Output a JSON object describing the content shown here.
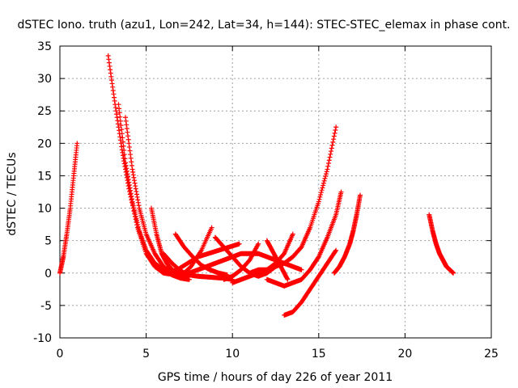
{
  "chart_data": {
    "type": "scatter",
    "title": "dSTEC Iono. truth (azu1, Lon=242, Lat=34, h=144): STEC-STEC_elemax in phase cont.",
    "xlabel": "GPS time / hours of day 226 of year 2011",
    "ylabel": "dSTEC  / TECUs",
    "xlim": [
      0,
      25
    ],
    "ylim": [
      -10,
      35
    ],
    "xticks": [
      0,
      5,
      10,
      15,
      20,
      25
    ],
    "yticks": [
      -10,
      -5,
      0,
      5,
      10,
      15,
      20,
      25,
      30,
      35
    ],
    "grid": true,
    "marker": "plus",
    "color": "#ff0000",
    "series": [
      {
        "x": [
          0.0,
          0.2,
          0.4,
          0.6,
          0.8,
          1.0
        ],
        "y": [
          0.0,
          2.5,
          6.0,
          10.0,
          15.0,
          20.0
        ]
      },
      {
        "x": [
          2.8,
          3.2,
          3.6,
          4.0,
          4.5,
          5.0,
          5.5,
          6.0,
          6.5
        ],
        "y": [
          33.5,
          26.0,
          19.0,
          13.0,
          7.0,
          3.0,
          1.0,
          0.0,
          -0.2
        ]
      },
      {
        "x": [
          3.4,
          3.8,
          4.2,
          4.6,
          5.0,
          5.5,
          6.0,
          6.5,
          7.0,
          7.5
        ],
        "y": [
          26.0,
          17.0,
          11.0,
          6.5,
          3.5,
          1.5,
          0.5,
          -0.3,
          -0.8,
          -1.0
        ]
      },
      {
        "x": [
          3.8,
          4.2,
          4.6,
          5.0,
          5.5,
          6.0,
          6.5,
          7.0
        ],
        "y": [
          24.0,
          16.0,
          10.0,
          6.0,
          3.0,
          1.0,
          0.0,
          -0.5
        ]
      },
      {
        "x": [
          5.3,
          5.6,
          5.9,
          6.2,
          6.5,
          7.0,
          7.5
        ],
        "y": [
          10.0,
          6.0,
          3.0,
          1.5,
          0.5,
          -0.3,
          -0.5
        ]
      },
      {
        "x": [
          6.0,
          6.5,
          7.0,
          7.5,
          8.0,
          8.5,
          9.0,
          9.5,
          10.0
        ],
        "y": [
          3.0,
          1.5,
          0.3,
          -0.3,
          -0.5,
          -0.6,
          -0.7,
          -0.8,
          -1.0
        ]
      },
      {
        "x": [
          6.7,
          7.2,
          7.7,
          8.2,
          8.7,
          9.2,
          9.7
        ],
        "y": [
          6.0,
          4.0,
          2.5,
          1.2,
          0.5,
          0.0,
          -0.3
        ]
      },
      {
        "x": [
          6.2,
          6.8,
          7.4,
          8.0,
          8.6,
          9.2,
          9.8,
          10.4
        ],
        "y": [
          0.0,
          0.5,
          1.5,
          2.5,
          3.0,
          3.5,
          4.0,
          4.5
        ]
      },
      {
        "x": [
          7.0,
          7.6,
          8.2,
          8.8
        ],
        "y": [
          -0.5,
          1.0,
          3.5,
          7.0
        ]
      },
      {
        "x": [
          7.0,
          7.5,
          8.0,
          8.5,
          9.0,
          9.5,
          10.0,
          10.5,
          11.0,
          11.5,
          12.0,
          12.5,
          13.0,
          13.5,
          14.0
        ],
        "y": [
          0.0,
          0.0,
          0.5,
          1.0,
          1.5,
          2.0,
          2.5,
          3.0,
          3.0,
          3.0,
          2.5,
          2.0,
          1.5,
          1.0,
          0.5
        ]
      },
      {
        "x": [
          9.0,
          9.5,
          10.0,
          10.5,
          11.0,
          11.5,
          12.0,
          12.5
        ],
        "y": [
          5.5,
          4.0,
          2.5,
          1.0,
          0.0,
          -0.5,
          0.0,
          1.0
        ]
      },
      {
        "x": [
          9.5,
          10.0,
          10.5,
          11.0,
          11.5
        ],
        "y": [
          -1.0,
          -0.5,
          0.5,
          2.0,
          4.5
        ]
      },
      {
        "x": [
          10.0,
          10.5,
          11.0,
          11.5,
          12.0,
          12.5,
          13.0,
          13.5
        ],
        "y": [
          -1.5,
          -1.0,
          -0.5,
          0.0,
          0.5,
          1.5,
          3.0,
          6.0
        ]
      },
      {
        "x": [
          11.0,
          11.5,
          12.0,
          12.5,
          13.0,
          13.5,
          14.0,
          14.5,
          15.0,
          15.5,
          16.0
        ],
        "y": [
          0.0,
          0.5,
          0.5,
          1.0,
          1.5,
          2.5,
          4.0,
          7.0,
          11.0,
          16.0,
          22.5
        ]
      },
      {
        "x": [
          12.0,
          12.5,
          13.0,
          13.5,
          14.0,
          14.5,
          15.0,
          15.5,
          16.0,
          16.3
        ],
        "y": [
          -1.0,
          -1.5,
          -2.0,
          -1.5,
          -1.0,
          0.5,
          2.5,
          5.5,
          9.0,
          12.5
        ]
      },
      {
        "x": [
          12.0,
          12.4,
          12.8,
          13.2
        ],
        "y": [
          5.0,
          3.0,
          1.0,
          -1.0
        ]
      },
      {
        "x": [
          13.0,
          13.5,
          14.0,
          14.5,
          15.0,
          15.5,
          16.0
        ],
        "y": [
          -6.5,
          -6.0,
          -4.5,
          -2.5,
          -0.5,
          1.5,
          3.5
        ]
      },
      {
        "x": [
          15.9,
          16.2,
          16.5,
          16.8,
          17.0,
          17.2,
          17.4
        ],
        "y": [
          0.0,
          1.0,
          2.5,
          4.5,
          6.5,
          9.0,
          12.0
        ]
      },
      {
        "x": [
          21.4,
          21.6,
          21.8,
          22.0,
          22.2,
          22.4,
          22.6,
          22.8
        ],
        "y": [
          9.0,
          6.5,
          4.5,
          3.0,
          2.0,
          1.0,
          0.5,
          0.0
        ]
      }
    ]
  }
}
